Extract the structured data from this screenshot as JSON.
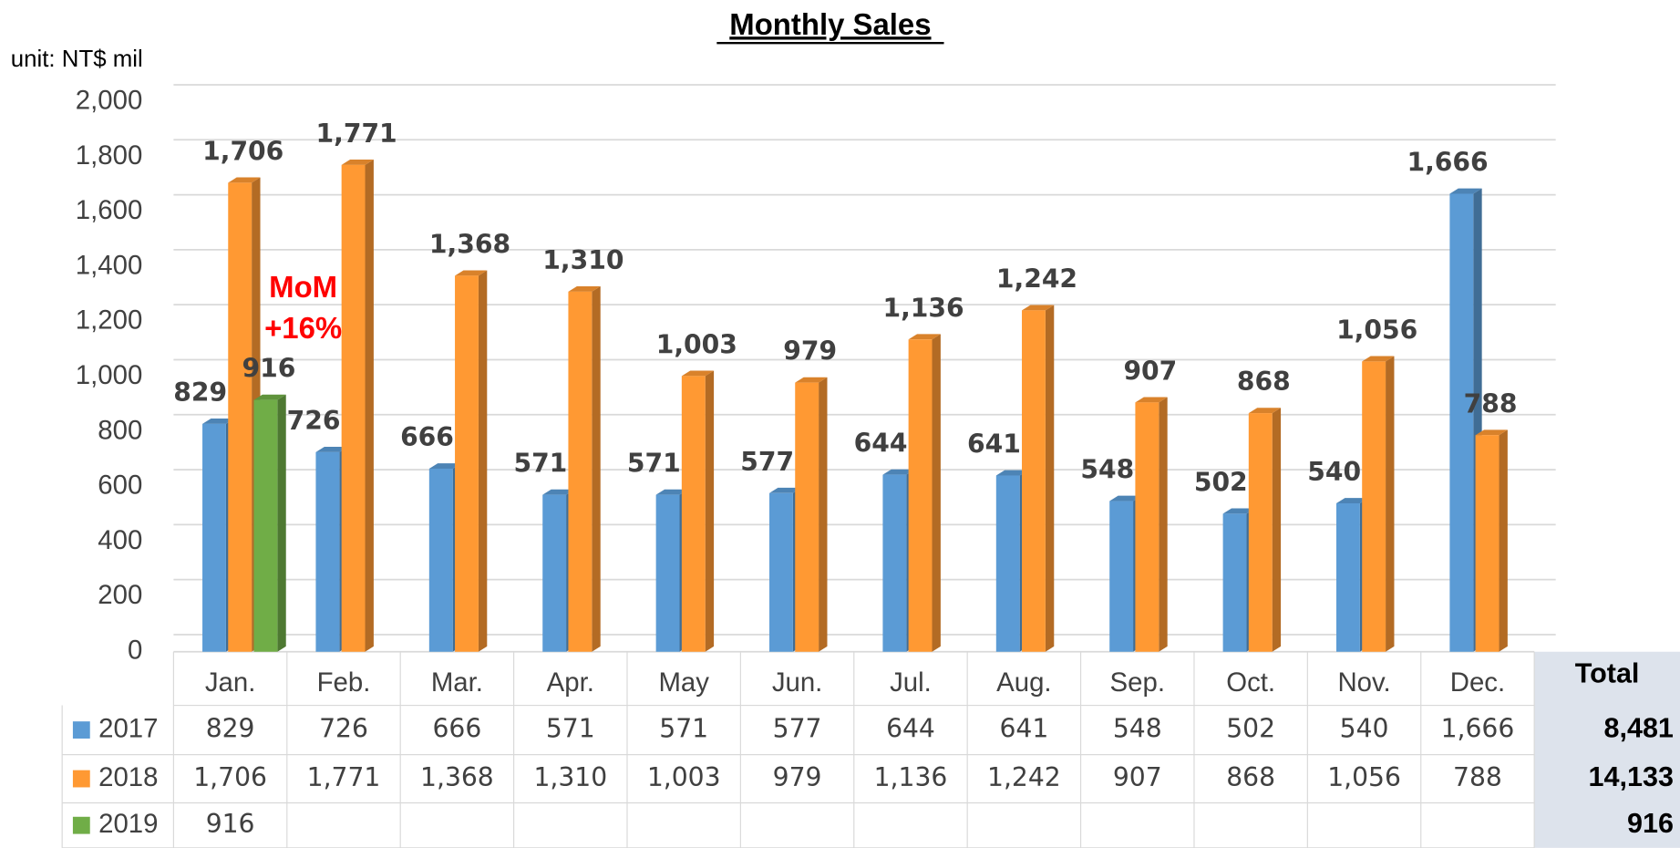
{
  "chart_data": {
    "type": "bar",
    "title": "Monthly Sales",
    "y_label": "unit: NT$ mil",
    "categories": [
      "Jan.",
      "Feb.",
      "Mar.",
      "Apr.",
      "May",
      "Jun.",
      "Jul.",
      "Aug.",
      "Sep.",
      "Oct.",
      "Nov.",
      "Dec."
    ],
    "series": [
      {
        "name": "2017",
        "color": "#5b9bd5",
        "values": [
          829,
          726,
          666,
          571,
          571,
          577,
          644,
          641,
          548,
          502,
          540,
          1666
        ],
        "value_labels": [
          "829",
          "726",
          "666",
          "571",
          "571",
          "577",
          "644",
          "641",
          "548",
          "502",
          "540",
          "1,666"
        ]
      },
      {
        "name": "2018",
        "color": "#ff9933",
        "values": [
          1706,
          1771,
          1368,
          1310,
          1003,
          979,
          1136,
          1242,
          907,
          868,
          1056,
          788
        ],
        "value_labels": [
          "1,706",
          "1,771",
          "1,368",
          "1,310",
          "1,003",
          "979",
          "1,136",
          "1,242",
          "907",
          "868",
          "1,056",
          "788"
        ]
      },
      {
        "name": "2019",
        "color": "#70ad47",
        "values": [
          916,
          null,
          null,
          null,
          null,
          null,
          null,
          null,
          null,
          null,
          null,
          null
        ],
        "value_labels": [
          "916",
          null,
          null,
          null,
          null,
          null,
          null,
          null,
          null,
          null,
          null,
          null
        ]
      }
    ],
    "ylim": [
      0,
      2000
    ],
    "yticks": [
      0,
      200,
      400,
      600,
      800,
      {
        "value": 1000,
        "label": "1,000"
      },
      {
        "value": 1200,
        "label": "1,200"
      },
      {
        "value": 1400,
        "label": "1,400"
      },
      {
        "value": 1600,
        "label": "1,600"
      },
      {
        "value": 1800,
        "label": "1,800"
      },
      {
        "value": 2000,
        "label": "2,000"
      }
    ],
    "grid": true,
    "annotation": [
      "MoM",
      "+16%"
    ],
    "totals": {
      "header": "Total",
      "values": [
        8481,
        14133,
        916
      ],
      "labels": [
        "8,481",
        "14,133",
        "916"
      ]
    }
  }
}
